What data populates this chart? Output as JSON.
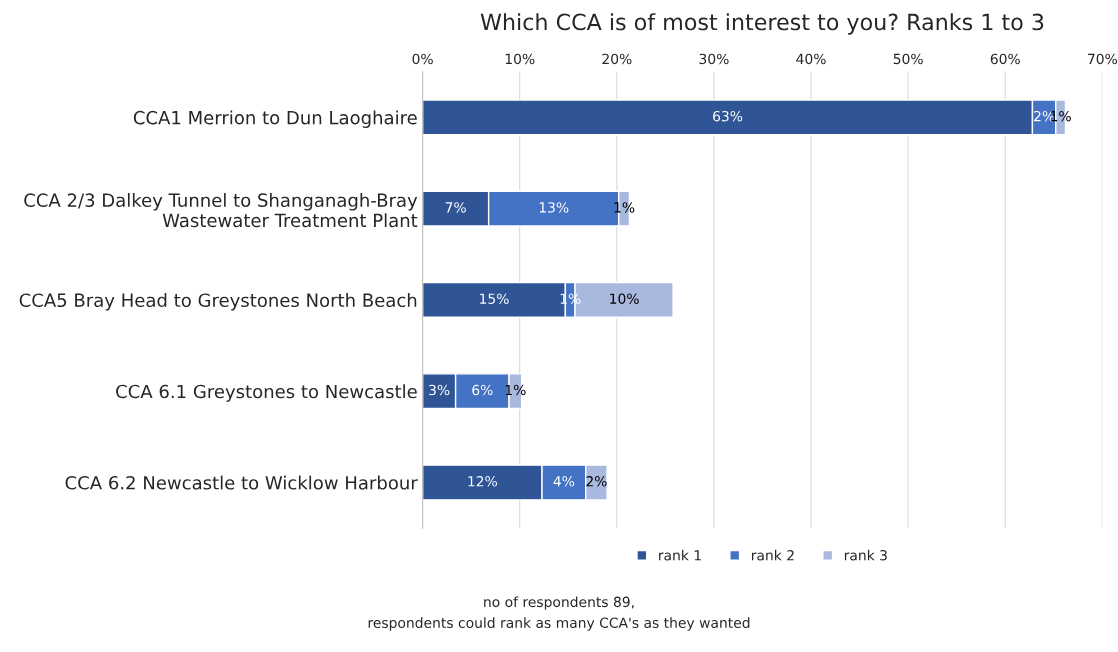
{
  "chart_data": {
    "type": "bar",
    "orientation": "horizontal",
    "stacked": true,
    "title": "Which CCA is of most interest to you? Ranks 1 to 3",
    "categories": [
      "CCA1 Merrion to Dun Laoghaire",
      "CCA 2/3 Dalkey Tunnel to Shanganagh-Bray\nWastewater Treatment Plant",
      "CCA5 Bray Head to Greystones North Beach",
      "CCA 6.1 Greystones to Newcastle",
      "CCA 6.2 Newcastle to Wicklow Harbour"
    ],
    "series": [
      {
        "name": "rank 1",
        "color": "#2f5597",
        "values": [
          62.8,
          6.8,
          14.7,
          3.4,
          12.3
        ],
        "value_labels": [
          "63%",
          "7%",
          "15%",
          "3%",
          "12%"
        ]
      },
      {
        "name": "rank 2",
        "color": "#4472c4",
        "values": [
          2.4,
          13.4,
          1.0,
          5.5,
          4.5
        ],
        "value_labels": [
          "2%",
          "13%",
          "1%",
          "6%",
          "4%"
        ]
      },
      {
        "name": "rank 3",
        "color": "#a9b8de",
        "values": [
          1.0,
          1.1,
          10.1,
          1.3,
          2.2
        ],
        "value_labels": [
          "1%",
          "1%",
          "10%",
          "1%",
          "2%"
        ]
      }
    ],
    "xlim": [
      0,
      70
    ],
    "xticks": [
      {
        "value": 0,
        "label": "0%"
      },
      {
        "value": 10,
        "label": "10%"
      },
      {
        "value": 20,
        "label": "20%"
      },
      {
        "value": 30,
        "label": "30%"
      },
      {
        "value": 40,
        "label": "40%"
      },
      {
        "value": 50,
        "label": "50%"
      },
      {
        "value": 60,
        "label": "60%"
      },
      {
        "value": 70,
        "label": "70%"
      }
    ],
    "grid": "x",
    "legend": "bottom",
    "annotations": [
      "no of respondents 89,",
      "respondents could rank as many CCA's as they wanted"
    ]
  }
}
